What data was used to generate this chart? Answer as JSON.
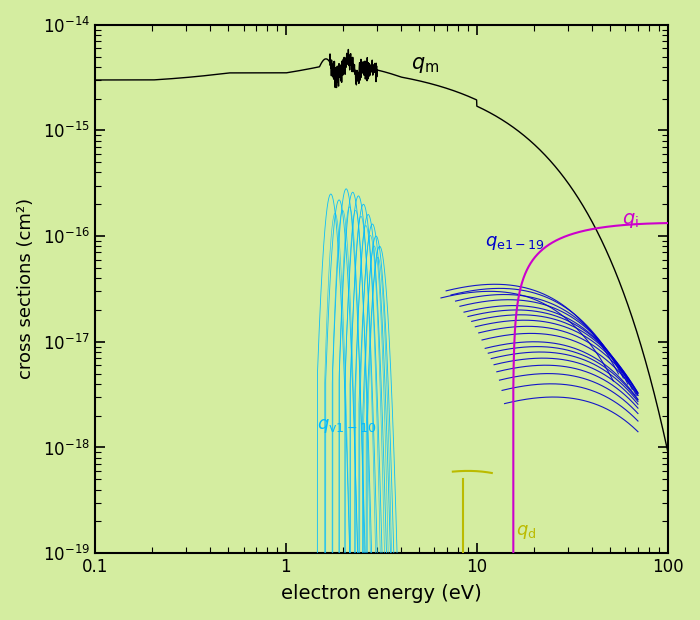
{
  "xlabel": "electron energy (eV)",
  "ylabel": "cross sections (cm²)",
  "bg_color": "#d4eda0",
  "xlim": [
    0.1,
    100
  ],
  "ylim": [
    1e-19,
    1e-14
  ],
  "color_qm": "#000000",
  "color_qi": "#cc00cc",
  "color_qv": "#00bbff",
  "color_qe": "#0000cc",
  "color_qd": "#bbbb00"
}
